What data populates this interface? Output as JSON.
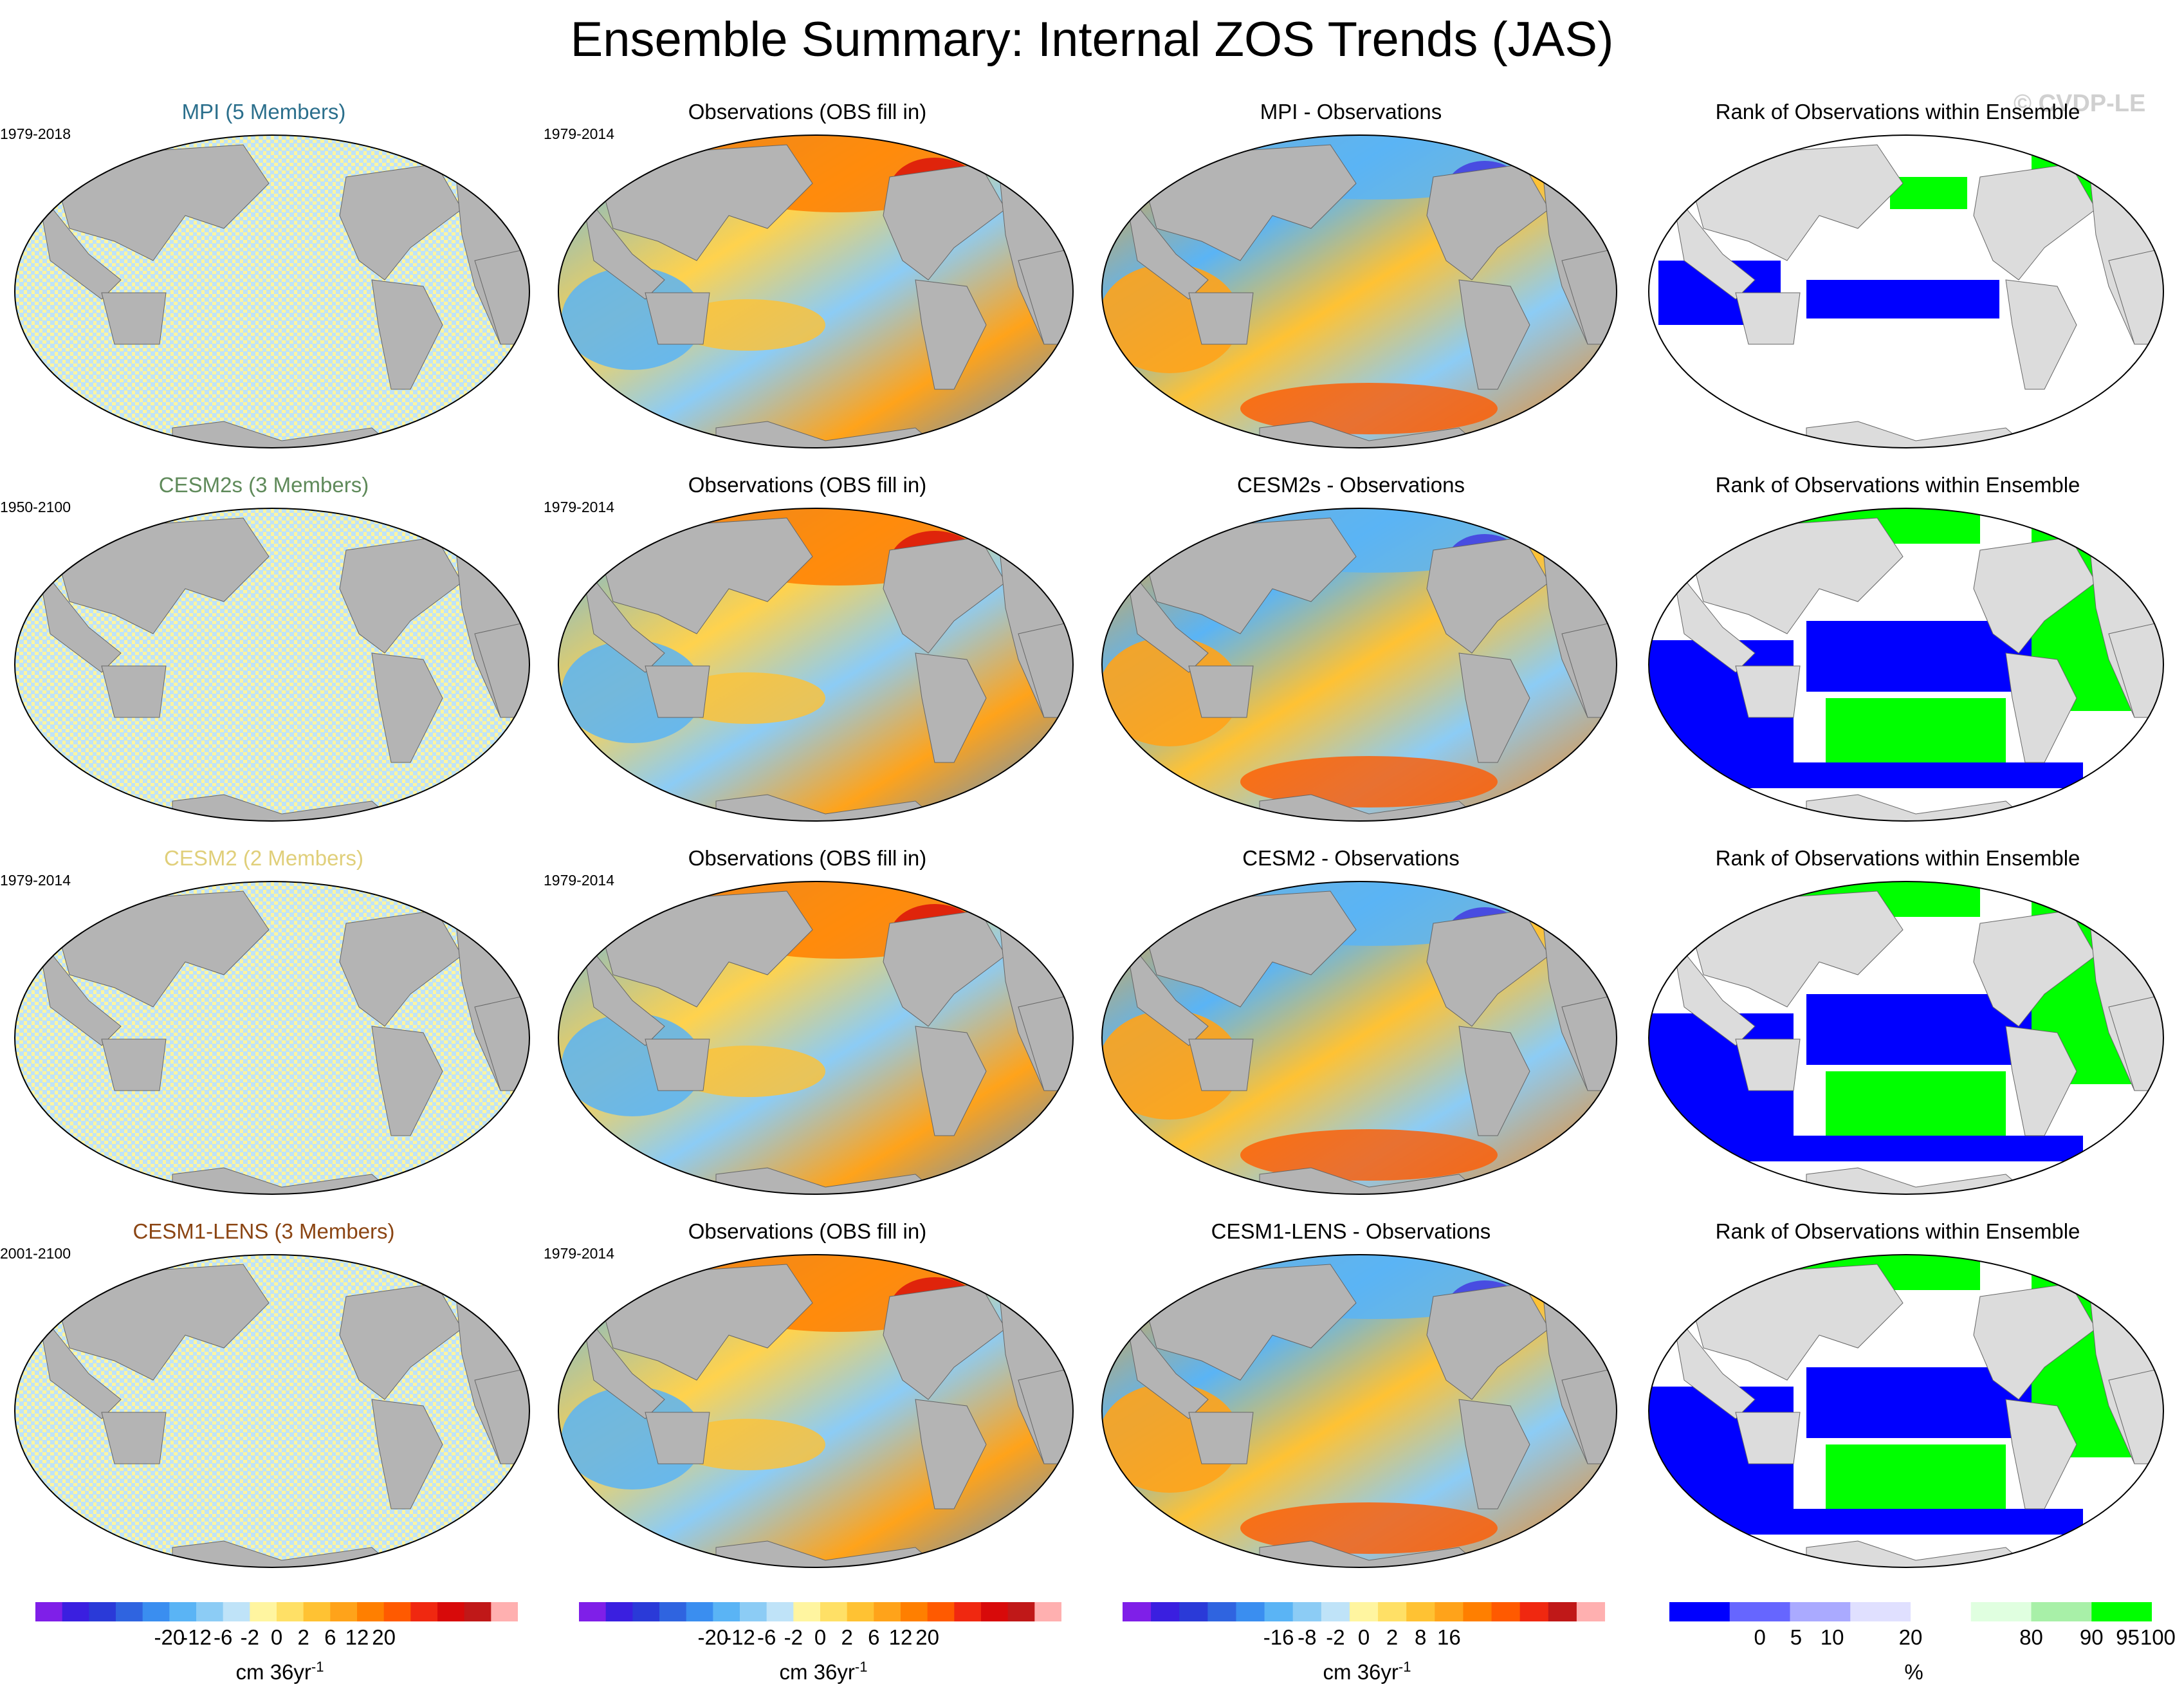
{
  "title": "Ensemble Summary: Internal ZOS Trends (JAS)",
  "watermark": "© CVDP-LE",
  "rows": [
    {
      "model": {
        "label": "MPI (5 Members)",
        "color": "#2b6f8c",
        "period": "1979-2018"
      },
      "obs": {
        "label": "Observations (OBS fill in)",
        "period": "1979-2014"
      },
      "diff": {
        "label": "MPI - Observations"
      },
      "rank": {
        "label": "Rank of Observations within Ensemble"
      }
    },
    {
      "model": {
        "label": "CESM2s (3 Members)",
        "color": "#5f8a5a",
        "period": "1950-2100"
      },
      "obs": {
        "label": "Observations (OBS fill in)",
        "period": "1979-2014"
      },
      "diff": {
        "label": "CESM2s - Observations"
      },
      "rank": {
        "label": "Rank of Observations within Ensemble"
      }
    },
    {
      "model": {
        "label": "CESM2 (2 Members)",
        "color": "#e0cf7a",
        "period": "1979-2014"
      },
      "obs": {
        "label": "Observations (OBS fill in)",
        "period": "1979-2014"
      },
      "diff": {
        "label": "CESM2 - Observations"
      },
      "rank": {
        "label": "Rank of Observations within Ensemble"
      }
    },
    {
      "model": {
        "label": "CESM1-LENS (3 Members)",
        "color": "#8b4513",
        "period": "2001-2100"
      },
      "obs": {
        "label": "Observations (OBS fill in)",
        "period": "1979-2014"
      },
      "diff": {
        "label": "CESM1-LENS - Observations"
      },
      "rank": {
        "label": "Rank of Observations within Ensemble"
      }
    }
  ],
  "colorbars": [
    {
      "units": "cm 36yr",
      "units_exp": "-1",
      "labels": [
        "-20",
        "-12",
        "-6",
        "-2",
        "0",
        "2",
        "6",
        "12",
        "20"
      ],
      "colors": [
        "#7f1fe8",
        "#3a1fe0",
        "#2a3ad8",
        "#2f64e0",
        "#3a8ef0",
        "#5ab4f5",
        "#8cccf5",
        "#bfe3f8",
        "#fff5a0",
        "#ffe066",
        "#ffc233",
        "#ffa31a",
        "#ff7f00",
        "#ff5a00",
        "#f02810",
        "#d80a0a",
        "#c01818",
        "#ffb0b0"
      ]
    },
    {
      "units": "cm 36yr",
      "units_exp": "-1",
      "labels": [
        "-20",
        "-12",
        "-6",
        "-2",
        "0",
        "2",
        "6",
        "12",
        "20"
      ],
      "colors": [
        "#7f1fe8",
        "#3a1fe0",
        "#2a3ad8",
        "#2f64e0",
        "#3a8ef0",
        "#5ab4f5",
        "#8cccf5",
        "#bfe3f8",
        "#fff5a0",
        "#ffe066",
        "#ffc233",
        "#ffa31a",
        "#ff7f00",
        "#ff5a00",
        "#f02810",
        "#d80a0a",
        "#c01818",
        "#ffb0b0"
      ]
    },
    {
      "units": "cm 36yr",
      "units_exp": "-1",
      "labels": [
        "-16",
        "-8",
        "-2",
        "0",
        "2",
        "8",
        "16"
      ],
      "colors": [
        "#7f1fe8",
        "#3a1fe0",
        "#2a3ad8",
        "#2f64e0",
        "#3a8ef0",
        "#5ab4f5",
        "#8cccf5",
        "#bfe3f8",
        "#fff5a0",
        "#ffe066",
        "#ffc233",
        "#ffa31a",
        "#ff7f00",
        "#ff5a00",
        "#f02810",
        "#c01818",
        "#ffb0b0"
      ]
    },
    {
      "units": "%",
      "units_exp": "",
      "labels": [
        "0",
        "5",
        "10",
        "20",
        "80",
        "90",
        "95",
        "100"
      ],
      "colors": [
        "#0000ff",
        "#6666ff",
        "#aaaaff",
        "#e0e0ff",
        "#ffffff",
        "#e0ffe0",
        "#a8f0a8",
        "#00ff00"
      ]
    }
  ],
  "colors": {
    "land": "#b4b4b4",
    "land_light": "#dcdcdc",
    "ocean_trend_a": "#fff5a0",
    "ocean_trend_b": "#bfe3f8"
  }
}
